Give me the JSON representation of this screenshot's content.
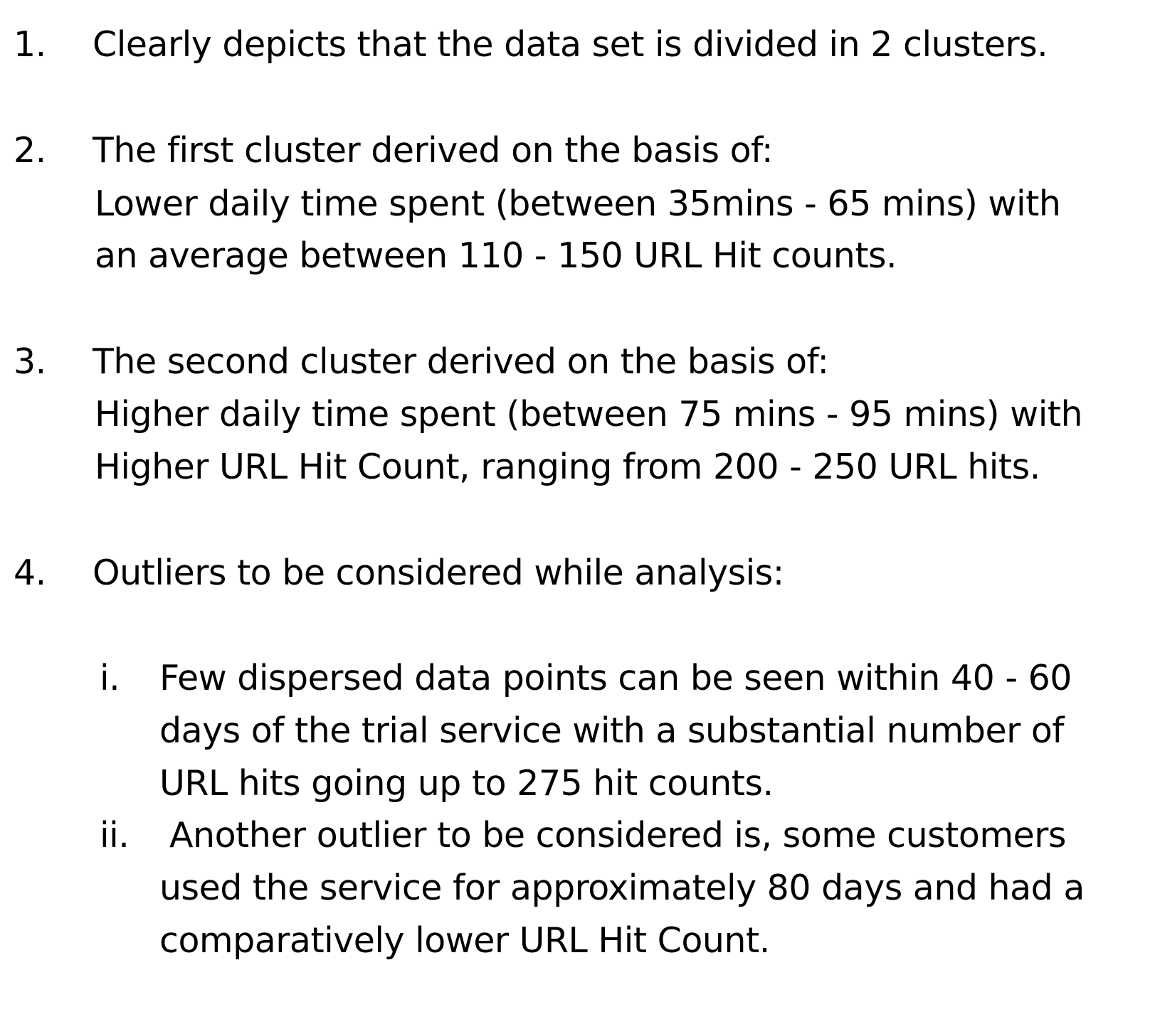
{
  "items": [
    {
      "number": "1.",
      "lines": [
        "Clearly depicts that the data set is divided in 2 clusters."
      ]
    },
    {
      "number": "2.",
      "lines": [
        "The first cluster derived on the basis of:",
        "Lower daily time spent (between 35mins - 65 mins) with",
        "an average between 110 - 150 URL Hit counts."
      ]
    },
    {
      "number": "3.",
      "lines": [
        "The second cluster derived on the basis of:",
        "Higher daily time spent (between 75 mins - 95 mins) with",
        "Higher URL Hit Count, ranging from 200 - 250 URL hits."
      ]
    },
    {
      "number": "4.",
      "lines": [
        "Outliers to be considered while analysis:"
      ],
      "subitems": [
        {
          "number": "i.",
          "lines": [
            "Few dispersed data points can be seen within 40 - 60",
            "days of the trial service with a substantial number of",
            "URL hits going up to 275 hit counts."
          ]
        },
        {
          "number": "ii.",
          "lines": [
            "Another outlier to be considered is, some customers",
            "used the service for approximately 80 days and had a",
            "comparatively lower URL Hit Count."
          ]
        }
      ]
    }
  ]
}
